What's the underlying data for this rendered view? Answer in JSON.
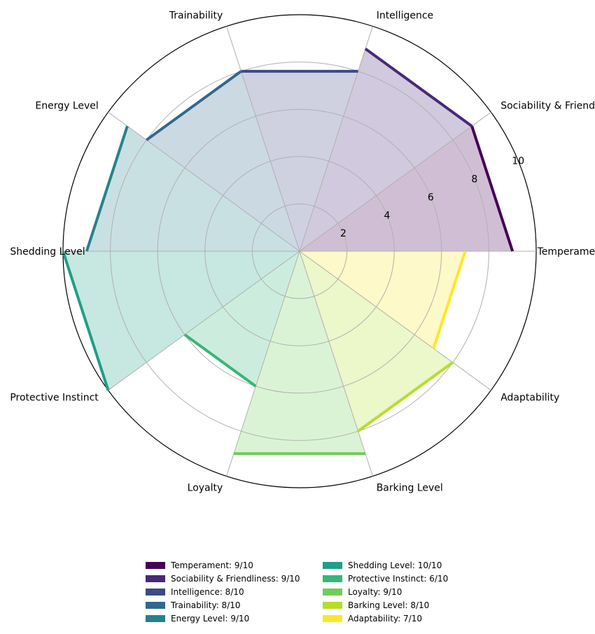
{
  "chart_data": {
    "type": "radar",
    "title": "",
    "rlim": [
      0,
      10
    ],
    "r_ticks": [
      2,
      4,
      6,
      8,
      10
    ],
    "grid": true,
    "legend_placement": "bottom-center",
    "categories": [
      "Temperament",
      "Sociability & Friendliness",
      "Intelligence",
      "Trainability",
      "Energy Level",
      "Shedding Level",
      "Protective Instinct",
      "Loyalty",
      "Barking Level",
      "Adaptability"
    ],
    "values": [
      9,
      9,
      8,
      8,
      9,
      10,
      6,
      9,
      8,
      7
    ],
    "colors": [
      "#440154",
      "#482878",
      "#3e4989",
      "#31688e",
      "#26828e",
      "#1f9e89",
      "#35b779",
      "#6ece58",
      "#b5de2b",
      "#fde725"
    ],
    "legend": [
      "Temperament: 9/10",
      "Sociability & Friendliness: 9/10",
      "Intelligence: 8/10",
      "Trainability: 8/10",
      "Energy Level: 9/10",
      "Shedding Level: 10/10",
      "Protective Instinct: 6/10",
      "Loyalty: 9/10",
      "Barking Level: 8/10",
      "Adaptability: 7/10"
    ]
  }
}
